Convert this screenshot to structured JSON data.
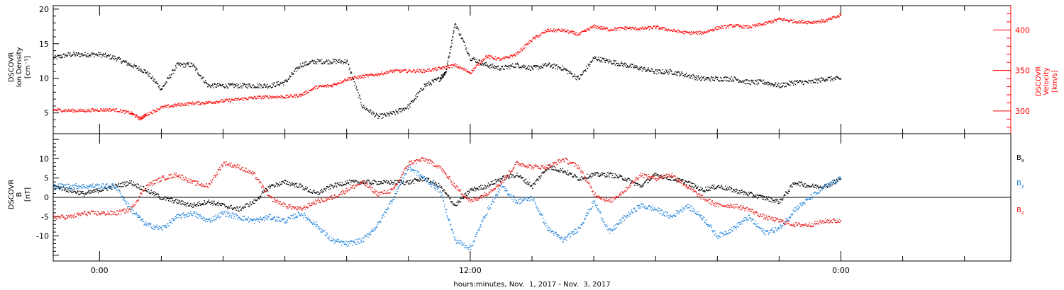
{
  "chart_data": [
    {
      "type": "scatter",
      "panel": "top",
      "ylabel_left": [
        "DSCOVR",
        "Ion Density",
        "[cm⁻³]"
      ],
      "ylabel_right": [
        "DSCOVR",
        "Velocity",
        "[km/s]"
      ],
      "ylim_left": [
        2,
        20.5
      ],
      "yticks_left": [
        "5",
        "10",
        "15",
        "20"
      ],
      "ylim_right": [
        272,
        430
      ],
      "yticks_right": [
        "300",
        "350",
        "400"
      ],
      "x_range_hours": [
        -1.5,
        29.5
      ],
      "series": [
        {
          "axis": "left",
          "color": "#000000",
          "x": [
            -1.5,
            -1.0,
            -0.5,
            0,
            0.5,
            1.0,
            1.5,
            2.0,
            2.5,
            3.0,
            3.5,
            4.0,
            4.5,
            5.0,
            5.5,
            6.0,
            6.5,
            7.0,
            7.5,
            8.0,
            8.5,
            9.0,
            9.5,
            10.0,
            10.5,
            11.0,
            11.2,
            11.5,
            12.0,
            12.5,
            13.0,
            13.5,
            14.0,
            14.5,
            15.0,
            15.5,
            16.0,
            16.5,
            17.0,
            17.5,
            18.0,
            18.5,
            19.0,
            19.5,
            20.0,
            20.5,
            21.0,
            21.5,
            22.0,
            22.5,
            23.0,
            23.5,
            24.0
          ],
          "values": [
            13,
            13.5,
            13.5,
            13.5,
            13,
            12,
            11,
            8.5,
            12,
            12,
            9,
            9,
            9,
            9,
            9,
            9.5,
            12,
            12.5,
            12.5,
            12.5,
            6,
            4.5,
            5,
            6,
            9,
            10,
            11,
            18,
            13,
            12,
            11.5,
            12,
            11.5,
            12,
            11.5,
            10,
            13,
            12.5,
            12,
            11.5,
            11,
            11,
            10.5,
            10,
            10,
            10,
            9.5,
            9.5,
            9,
            9.5,
            9.5,
            10,
            10
          ]
        },
        {
          "axis": "right",
          "color": "#ff0000",
          "x": [
            -1.5,
            -1.0,
            -0.5,
            0,
            0.5,
            1.0,
            1.3,
            1.5,
            2.0,
            2.5,
            3.0,
            3.5,
            4.0,
            4.5,
            5.0,
            5.5,
            6.0,
            6.5,
            7.0,
            7.5,
            8.0,
            8.5,
            9.0,
            9.5,
            10.0,
            10.5,
            11.0,
            11.5,
            12.0,
            12.5,
            13.0,
            13.5,
            14.0,
            14.5,
            15.0,
            15.5,
            16.0,
            16.5,
            17.0,
            17.5,
            18.0,
            18.5,
            19.0,
            19.5,
            20.0,
            20.5,
            21.0,
            21.5,
            22.0,
            22.5,
            23.0,
            23.5,
            24.0
          ],
          "values": [
            302,
            301,
            301,
            302,
            302,
            298,
            291,
            296,
            305,
            308,
            310,
            311,
            313,
            315,
            317,
            318,
            318,
            320,
            330,
            332,
            340,
            343,
            346,
            350,
            350,
            350,
            353,
            357,
            348,
            368,
            364,
            371,
            389,
            400,
            400,
            395,
            405,
            401,
            403,
            402,
            404,
            400,
            397,
            397,
            403,
            406,
            404,
            408,
            414,
            411,
            410,
            412,
            419
          ]
        }
      ]
    },
    {
      "type": "scatter",
      "panel": "bottom",
      "ylabel_left": [
        "DSCOVR",
        "B",
        "[nT]"
      ],
      "ylim": [
        -16.5,
        16.5
      ],
      "yticks": [
        "-10",
        "-5",
        "0",
        "5",
        "10"
      ],
      "x_range_hours": [
        -1.5,
        29.5
      ],
      "xticks": [
        {
          "hour": 0,
          "label": "0:00"
        },
        {
          "hour": 12,
          "label": "12:00"
        },
        {
          "hour": 24,
          "label": "0:00"
        }
      ],
      "xlabel": "hours:minutes, Nov.  1, 2017 - Nov.  3, 2017",
      "zero_line": true,
      "series": [
        {
          "name": "B",
          "subscript": "x",
          "color": "#000000",
          "x": [
            -1.5,
            -1.0,
            -0.5,
            0,
            0.5,
            1.0,
            1.5,
            2.0,
            2.5,
            3.0,
            3.5,
            4.0,
            4.5,
            5.0,
            5.5,
            6.0,
            6.5,
            7.0,
            7.5,
            8.0,
            8.5,
            9.0,
            9.5,
            10.0,
            10.5,
            11.0,
            11.5,
            12.0,
            12.5,
            13.0,
            13.5,
            14.0,
            14.5,
            15.0,
            15.5,
            16.0,
            16.5,
            17.0,
            17.5,
            18.0,
            18.5,
            19.0,
            19.5,
            20.0,
            20.5,
            21.0,
            21.5,
            22.0,
            22.5,
            23.0,
            23.5,
            24.0
          ],
          "values": [
            3,
            2,
            1,
            2,
            3,
            4,
            2,
            0,
            -1,
            -2,
            -1,
            -2,
            -3,
            -1,
            3,
            4,
            3,
            1,
            3,
            4,
            4,
            4,
            4,
            4,
            5,
            3,
            -2,
            2,
            3,
            5,
            6,
            3,
            8,
            7,
            5,
            6,
            6,
            5,
            3,
            6,
            5,
            4,
            2,
            3,
            2,
            1,
            0,
            -1,
            4,
            3,
            3,
            5
          ]
        },
        {
          "name": "B",
          "subscript": "y",
          "color": "#1e82dc",
          "x": [
            -1.5,
            -1.0,
            -0.5,
            0,
            0.5,
            1.0,
            1.5,
            2.0,
            2.5,
            3.0,
            3.5,
            4.0,
            4.5,
            5.0,
            5.5,
            6.0,
            6.5,
            7.0,
            7.5,
            8.0,
            8.5,
            9.0,
            9.5,
            10.0,
            10.5,
            11.0,
            11.5,
            12.0,
            12.5,
            13.0,
            13.5,
            14.0,
            14.5,
            15.0,
            15.5,
            16.0,
            16.5,
            17.0,
            17.5,
            18.0,
            18.5,
            19.0,
            19.5,
            20.0,
            20.5,
            21.0,
            21.5,
            22.0,
            22.5,
            23.0,
            23.5,
            24.0
          ],
          "values": [
            3,
            3,
            3,
            3,
            3,
            -3,
            -7,
            -8,
            -5,
            -4,
            -6,
            -4,
            -5,
            -6,
            -5,
            -6,
            -4,
            -7,
            -11,
            -12,
            -11,
            -7,
            0,
            8,
            5,
            2,
            -11,
            -13,
            -4,
            3,
            -1,
            0,
            -8,
            -11,
            -8,
            -1,
            -9,
            -5,
            -2,
            -3,
            -5,
            -2,
            -5,
            -10,
            -8,
            -5,
            -9,
            -8,
            -3,
            0,
            3,
            5
          ]
        },
        {
          "name": "B",
          "subscript": "z",
          "color": "#e61e1e",
          "x": [
            -1.5,
            -1.0,
            -0.5,
            0,
            0.5,
            1.0,
            1.5,
            2.0,
            2.5,
            3.0,
            3.5,
            4.0,
            4.5,
            5.0,
            5.5,
            6.0,
            6.5,
            7.0,
            7.5,
            8.0,
            8.5,
            9.0,
            9.5,
            10.0,
            10.5,
            11.0,
            11.5,
            12.0,
            12.5,
            13.0,
            13.5,
            14.0,
            14.5,
            15.0,
            15.5,
            16.0,
            16.5,
            17.0,
            17.5,
            18.0,
            18.5,
            19.0,
            19.5,
            20.0,
            20.5,
            21.0,
            21.5,
            22.0,
            22.5,
            23.0,
            23.5,
            24.0
          ],
          "values": [
            -5,
            -5,
            -4,
            -4,
            -4,
            -3,
            3,
            5,
            6,
            4,
            3,
            9,
            8,
            6,
            0,
            -2,
            -3,
            -1,
            0,
            2,
            4,
            1,
            2,
            9,
            10,
            8,
            3,
            -1,
            1,
            4,
            9,
            8,
            8,
            10,
            8,
            1,
            -1,
            2,
            6,
            5,
            6,
            3,
            0,
            -2,
            -2,
            -3,
            -5,
            -6,
            -7,
            -7,
            -6,
            -6
          ]
        }
      ]
    }
  ]
}
